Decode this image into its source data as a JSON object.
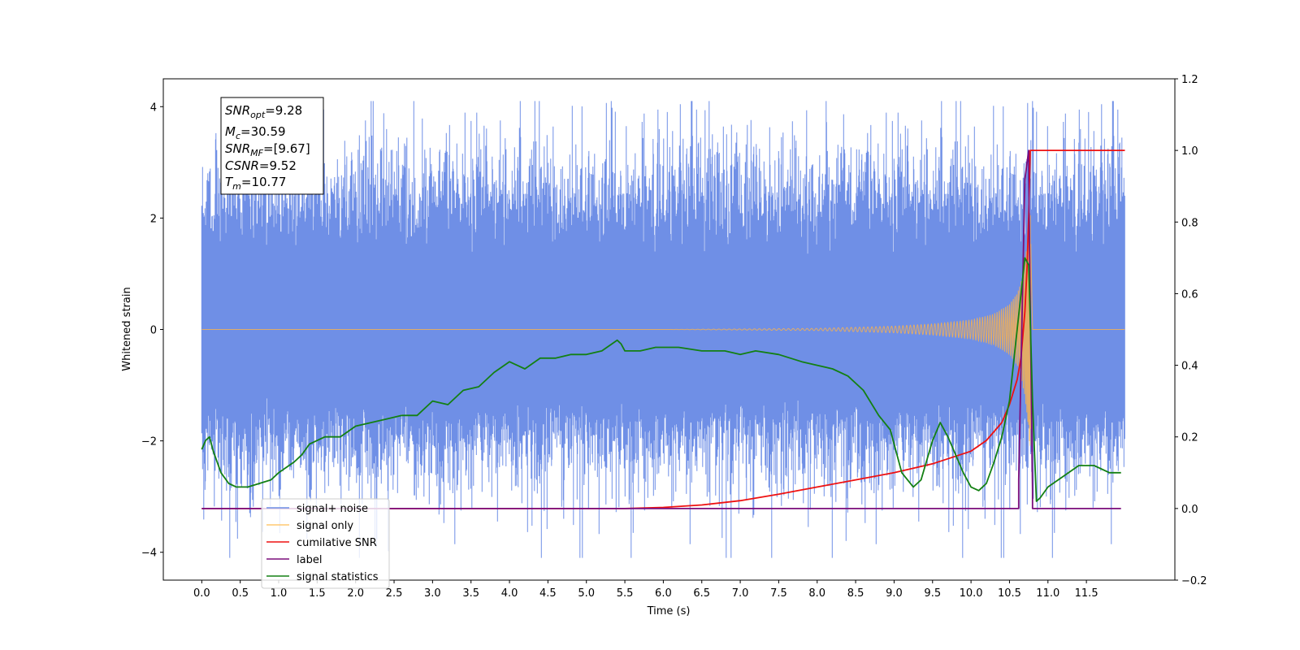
{
  "chart_data": {
    "type": "line",
    "xlabel": "Time (s)",
    "ylabel": "Whitened strain",
    "xlim": [
      -0.5,
      12.65
    ],
    "ylim": [
      -4.5,
      4.5
    ],
    "y2lim": [
      -0.2,
      1.2
    ],
    "x_ticks": [
      0.0,
      0.5,
      1.0,
      1.5,
      2.0,
      2.5,
      3.0,
      3.5,
      4.0,
      4.5,
      5.0,
      5.5,
      6.0,
      6.5,
      7.0,
      7.5,
      8.0,
      8.5,
      9.0,
      9.5,
      10.0,
      10.5,
      11.0,
      11.5
    ],
    "x_tick_labels": [
      "0.0",
      "0.5",
      "1.0",
      "1.5",
      "2.0",
      "2.5",
      "3.0",
      "3.5",
      "4.0",
      "4.5",
      "5.0",
      "5.5",
      "6.0",
      "6.5",
      "7.0",
      "7.5",
      "8.0",
      "8.5",
      "9.0",
      "9.5",
      "10.0",
      "10.5",
      "11.0",
      "11.5"
    ],
    "y_ticks": [
      -4,
      -2,
      0,
      2,
      4
    ],
    "y_tick_labels": [
      "−4",
      "−2",
      "0",
      "2",
      "4"
    ],
    "y2_ticks": [
      -0.2,
      0.0,
      0.2,
      0.4,
      0.6,
      0.8,
      1.0,
      1.2
    ],
    "y2_tick_labels": [
      "−0.2",
      "0.0",
      "0.2",
      "0.4",
      "0.6",
      "0.8",
      "1.0",
      "1.2"
    ],
    "grid": false,
    "legend_position": "lower-left",
    "annotation": {
      "snr_opt": "9.28",
      "mc": "30.59",
      "snr_mf": "[9.67]",
      "csnr": "9.52",
      "tm": "10.77"
    },
    "series": [
      {
        "name": "signal+ noise",
        "axis": "left",
        "color": "#6f8fe6",
        "x_range": [
          0.0,
          12.0
        ],
        "y_range_approx": [
          -4.1,
          4.1
        ],
        "note_values": "dense noisy strain around 0"
      },
      {
        "name": "signal only",
        "axis": "left",
        "color": "#ffb347",
        "x": [
          0.0,
          6.0,
          8.0,
          9.0,
          9.5,
          10.0,
          10.3,
          10.5,
          10.6,
          10.65,
          10.7,
          10.74,
          10.77,
          10.8,
          12.0
        ],
        "amplitude": [
          0.0,
          0.0,
          0.02,
          0.06,
          0.1,
          0.17,
          0.28,
          0.45,
          0.65,
          0.85,
          1.2,
          1.7,
          2.2,
          0.0,
          0.0
        ]
      },
      {
        "name": "cumilative SNR",
        "axis": "right",
        "color": "#ee1111",
        "x": [
          0.0,
          5.5,
          6.0,
          6.5,
          7.0,
          7.5,
          8.0,
          8.5,
          9.0,
          9.5,
          10.0,
          10.2,
          10.4,
          10.5,
          10.6,
          10.65,
          10.7,
          10.73,
          10.75,
          10.76,
          10.77,
          11.0,
          12.0
        ],
        "values": [
          0.0,
          0.0,
          0.003,
          0.01,
          0.022,
          0.04,
          0.06,
          0.08,
          0.1,
          0.125,
          0.16,
          0.19,
          0.24,
          0.29,
          0.36,
          0.42,
          0.55,
          0.68,
          0.82,
          0.92,
          1.0,
          1.0,
          1.0
        ]
      },
      {
        "name": "label",
        "axis": "right",
        "color": "#7b0d7b",
        "x": [
          0.0,
          10.62,
          10.62,
          10.7,
          10.75,
          10.75,
          10.8,
          10.8,
          11.95
        ],
        "values": [
          0.0,
          0.0,
          0.08,
          0.92,
          1.0,
          0.92,
          0.05,
          0.0,
          0.0
        ]
      },
      {
        "name": "signal statistics",
        "axis": "right",
        "color": "#138013",
        "x": [
          0.0,
          0.05,
          0.1,
          0.15,
          0.25,
          0.35,
          0.45,
          0.6,
          0.75,
          0.9,
          1.0,
          1.2,
          1.3,
          1.4,
          1.6,
          1.8,
          2.0,
          2.2,
          2.4,
          2.6,
          2.8,
          3.0,
          3.2,
          3.4,
          3.6,
          3.8,
          4.0,
          4.1,
          4.2,
          4.4,
          4.6,
          4.8,
          5.0,
          5.2,
          5.4,
          5.45,
          5.5,
          5.7,
          5.9,
          6.2,
          6.5,
          6.8,
          7.0,
          7.2,
          7.5,
          7.8,
          8.0,
          8.2,
          8.4,
          8.6,
          8.8,
          8.95,
          9.1,
          9.25,
          9.35,
          9.5,
          9.6,
          9.7,
          9.8,
          9.9,
          10.0,
          10.1,
          10.2,
          10.3,
          10.4,
          10.5,
          10.6,
          10.7,
          10.75,
          10.8,
          10.85,
          10.9,
          11.0,
          11.2,
          11.4,
          11.6,
          11.8,
          11.95
        ],
        "values": [
          0.165,
          0.19,
          0.2,
          0.16,
          0.1,
          0.07,
          0.06,
          0.06,
          0.07,
          0.08,
          0.1,
          0.13,
          0.15,
          0.18,
          0.2,
          0.2,
          0.23,
          0.24,
          0.25,
          0.26,
          0.26,
          0.3,
          0.29,
          0.33,
          0.34,
          0.38,
          0.41,
          0.4,
          0.39,
          0.42,
          0.42,
          0.43,
          0.43,
          0.44,
          0.47,
          0.46,
          0.44,
          0.44,
          0.45,
          0.45,
          0.44,
          0.44,
          0.43,
          0.44,
          0.43,
          0.41,
          0.4,
          0.39,
          0.37,
          0.33,
          0.26,
          0.22,
          0.1,
          0.06,
          0.08,
          0.19,
          0.24,
          0.2,
          0.15,
          0.1,
          0.06,
          0.05,
          0.07,
          0.13,
          0.2,
          0.3,
          0.5,
          0.7,
          0.68,
          0.3,
          0.02,
          0.03,
          0.06,
          0.09,
          0.12,
          0.12,
          0.1,
          0.1
        ]
      }
    ]
  },
  "labels": {
    "xlabel": "Time (s)",
    "ylabel": "Whitened strain"
  },
  "annotation_text": {
    "snr_opt_base": "SNR",
    "snr_opt_sub": "opt",
    "snr_opt_val": "=9.28",
    "mc_base": "M",
    "mc_sub": "c",
    "mc_val": "=30.59",
    "snr_mf_base": "SNR",
    "snr_mf_sub": "MF",
    "snr_mf_val": "=[9.67]",
    "csnr_base": "CSNR",
    "csnr_val": "=9.52",
    "tm_base": "T",
    "tm_sub": "m",
    "tm_val": "=10.77"
  },
  "legend": {
    "items": [
      {
        "label": "signal+ noise",
        "color": "#6f8fe6"
      },
      {
        "label": "signal only",
        "color": "#ffc870"
      },
      {
        "label": "cumilative SNR",
        "color": "#ee1111"
      },
      {
        "label": "label",
        "color": "#7b0d7b"
      },
      {
        "label": "signal statistics",
        "color": "#138013"
      }
    ]
  }
}
